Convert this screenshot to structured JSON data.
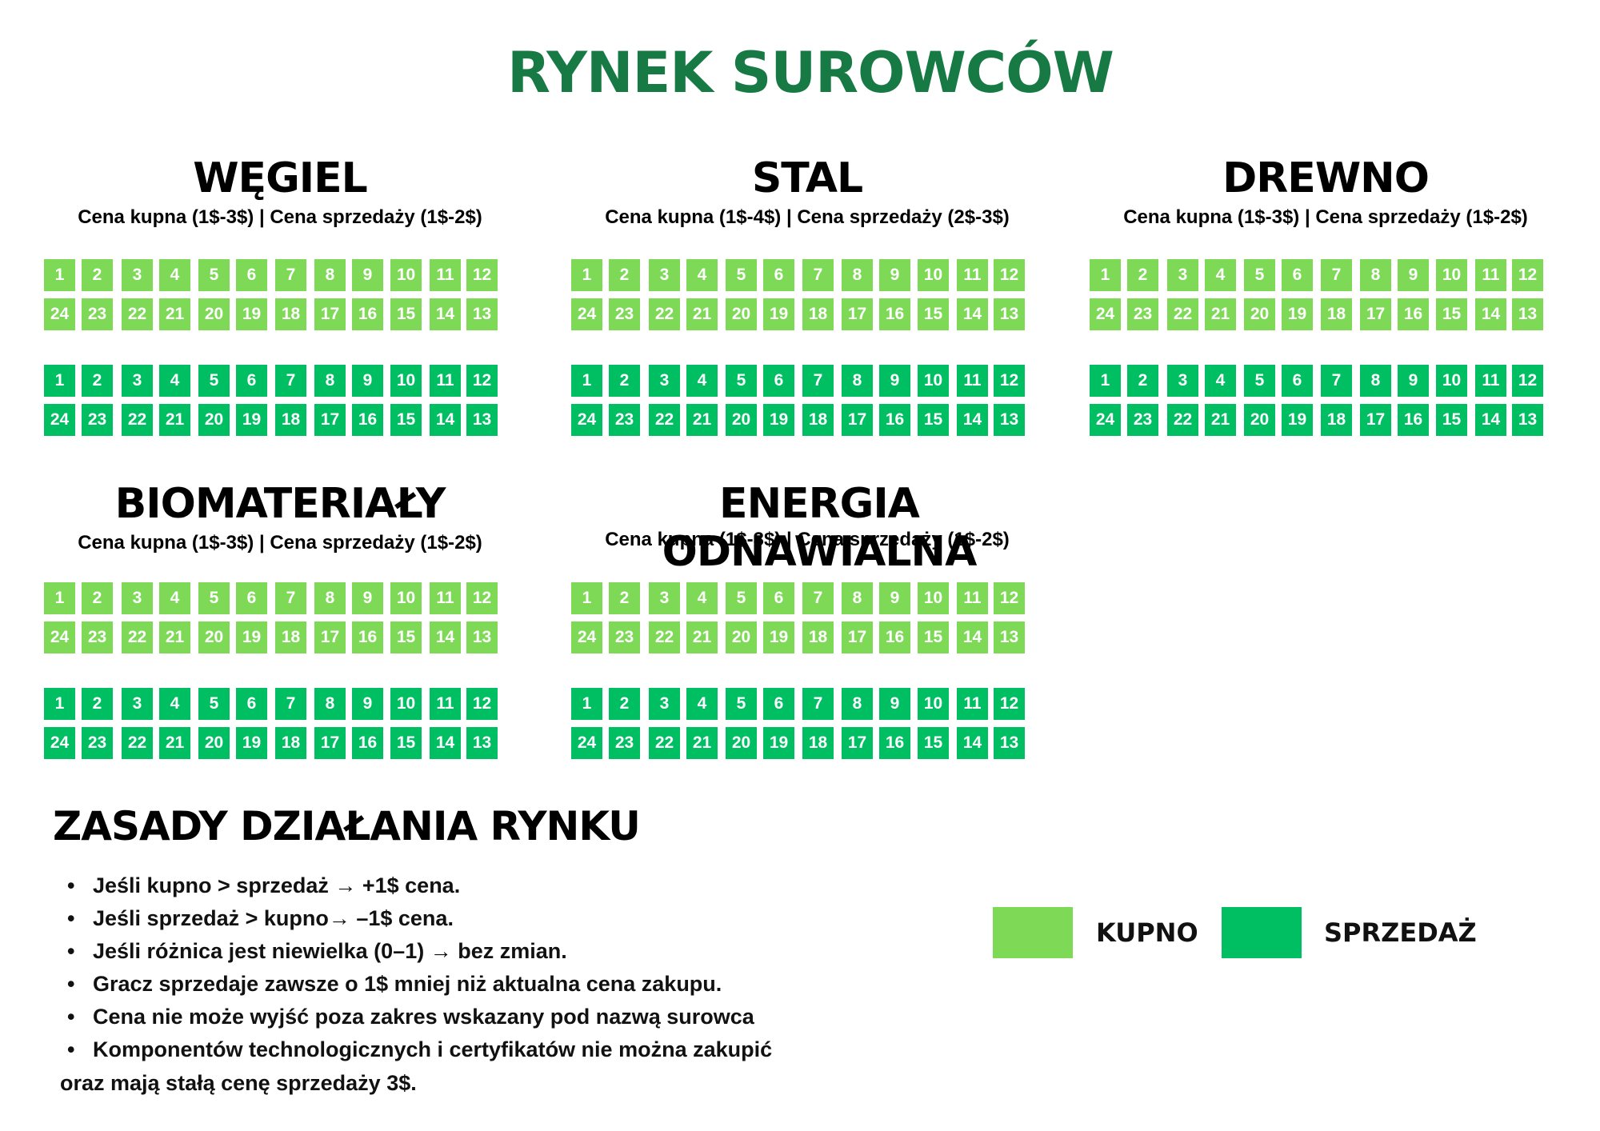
{
  "title": "RYNEK SUROWCÓW",
  "colors": {
    "title": "#177a45",
    "kupno": "#7ed957",
    "sprzedaz": "#00bf63"
  },
  "top_row_numbers": [
    "1",
    "2",
    "3",
    "4",
    "5",
    "6",
    "7",
    "8",
    "9",
    "10",
    "11",
    "12"
  ],
  "bottom_row_numbers": [
    "24",
    "23",
    "22",
    "21",
    "20",
    "19",
    "18",
    "17",
    "16",
    "15",
    "14",
    "13"
  ],
  "sections": [
    {
      "name": "WĘGIEL",
      "price": "Cena kupna (1$-3$) | Cena sprzedaży (1$-2$)"
    },
    {
      "name": "STAL",
      "price": "Cena kupna (1$-4$) | Cena sprzedaży (2$-3$)"
    },
    {
      "name": "DREWNO",
      "price": "Cena kupna (1$-3$) | Cena sprzedaży (1$-2$)"
    },
    {
      "name": "BIOMATERIAŁY",
      "price": "Cena kupna (1$-3$) | Cena sprzedaży (1$-2$)"
    },
    {
      "name": "ENERGIA ODNAWIALNA",
      "price": "Cena kupna (1$-3$) | Cena sprzedaży (1$-2$)"
    }
  ],
  "rules_title": "ZASADY DZIAŁANIA RYNKU",
  "rules": [
    "Jeśli kupno > sprzedaż → +1$ cena.",
    "Jeśli sprzedaż > kupno→ –1$ cena.",
    "Jeśli różnica jest niewielka (0–1) → bez zmian.",
    "Gracz sprzedaje zawsze o 1$ mniej niż aktualna cena zakupu.",
    "Cena nie może wyjść poza zakres wskazany pod nazwą surowca",
    "Komponentów technologicznych i certyfikatów nie można zakupić"
  ],
  "rules_continuation": "oraz mają stałą cenę sprzedaży 3$.",
  "rule_bullet": "•",
  "legend": {
    "kupno_label": "KUPNO",
    "sprzedaz_label": "SPRZEDAŻ"
  }
}
